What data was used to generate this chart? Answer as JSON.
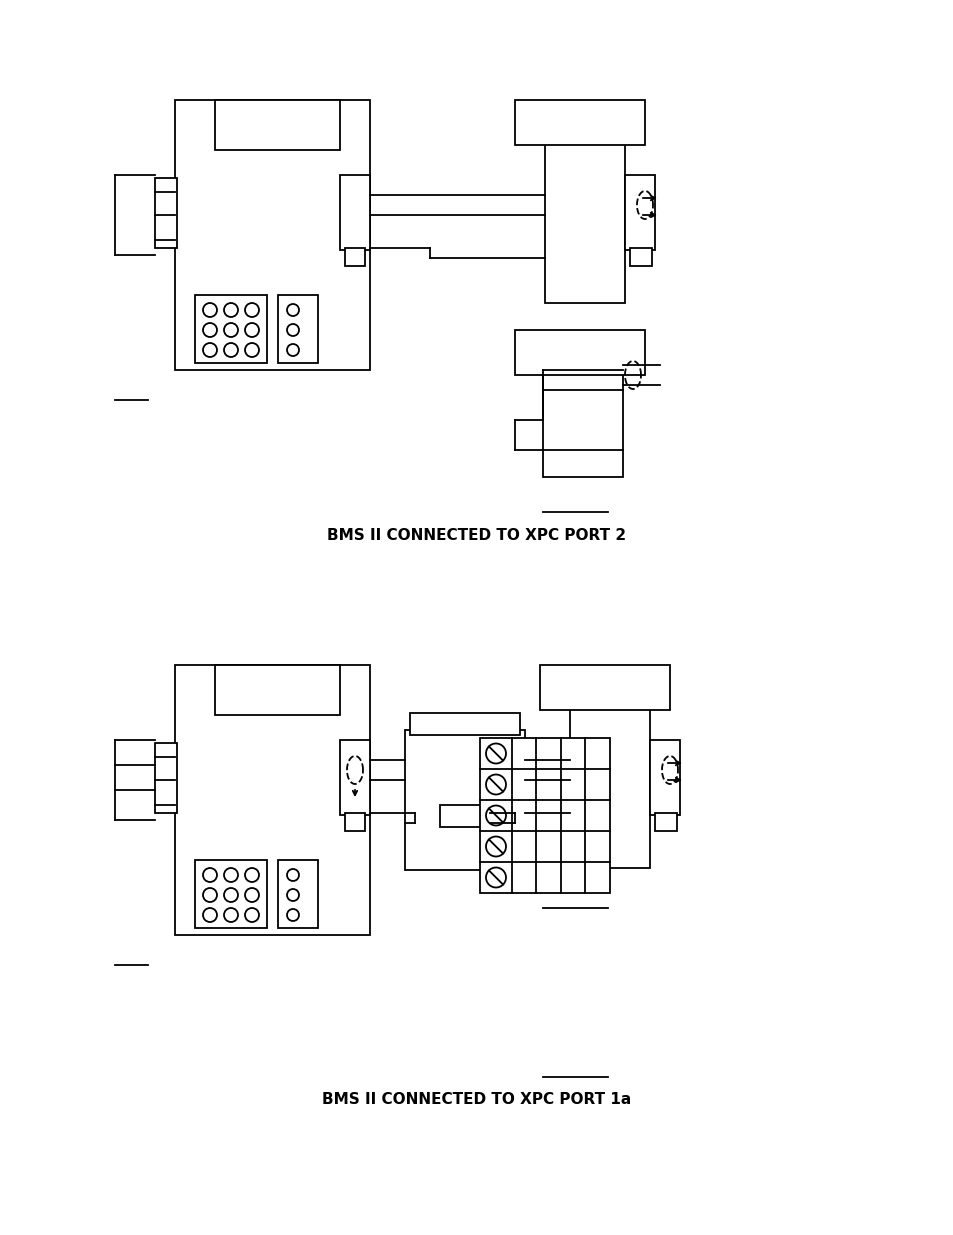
{
  "bg_color": "#ffffff",
  "title1": "BMS II CONNECTED TO XPC PORT 2",
  "title2": "BMS II CONNECTED TO XPC PORT 1a",
  "lw": 1.3
}
